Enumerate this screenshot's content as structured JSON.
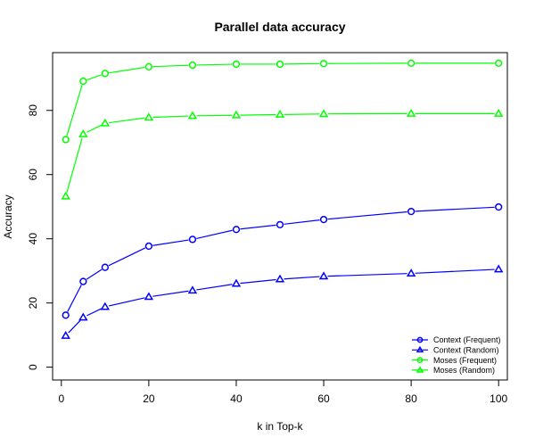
{
  "chart_data": {
    "type": "line",
    "title": "Parallel data accuracy",
    "xlabel": "k in Top-k",
    "ylabel": "Accuracy",
    "xlim": [
      -2,
      102
    ],
    "ylim": [
      -4,
      98
    ],
    "xticks": [
      0,
      20,
      40,
      60,
      80,
      100
    ],
    "yticks": [
      0,
      20,
      40,
      60,
      80
    ],
    "grid": false,
    "legend_position": "bottom-right",
    "x": [
      1,
      5,
      10,
      20,
      30,
      40,
      50,
      60,
      80,
      100
    ],
    "series": [
      {
        "name": "Context (Frequent)",
        "color": "#0000ff",
        "marker": "circle",
        "values": [
          16.2,
          26.7,
          31.1,
          37.7,
          39.8,
          42.9,
          44.4,
          46.0,
          48.5,
          49.9
        ]
      },
      {
        "name": "Context (Random)",
        "color": "#0000ff",
        "marker": "triangle",
        "values": [
          9.8,
          15.5,
          18.8,
          21.9,
          23.9,
          26.0,
          27.4,
          28.3,
          29.2,
          30.5
        ]
      },
      {
        "name": "Moses (Frequent)",
        "color": "#00ff00",
        "marker": "circle",
        "values": [
          70.9,
          89.1,
          91.5,
          93.6,
          94.1,
          94.4,
          94.4,
          94.6,
          94.7,
          94.7
        ]
      },
      {
        "name": "Moses (Random)",
        "color": "#00ff00",
        "marker": "triangle",
        "values": [
          53.2,
          72.6,
          76.0,
          77.8,
          78.3,
          78.5,
          78.7,
          78.9,
          79.0,
          79.0
        ]
      }
    ]
  }
}
